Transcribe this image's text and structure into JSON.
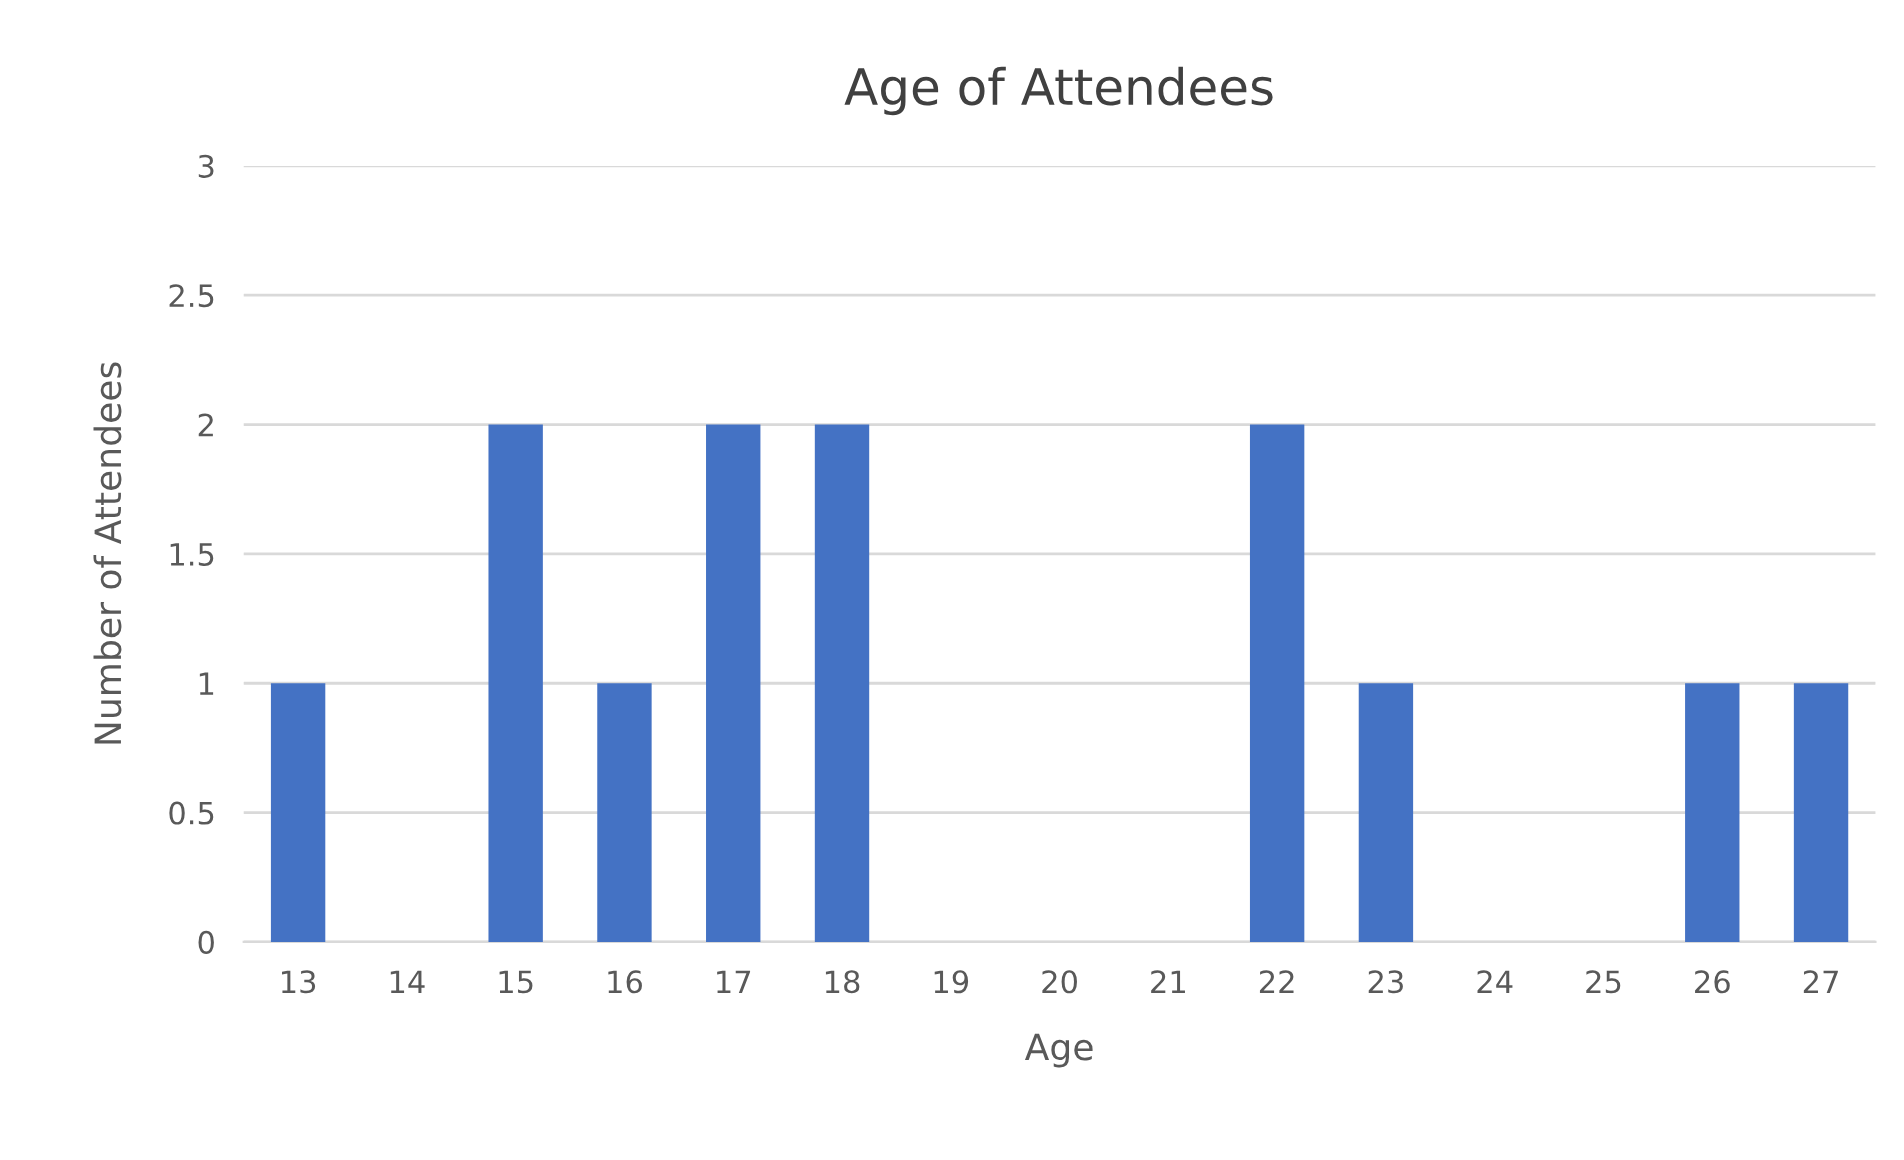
{
  "chart_data": {
    "type": "bar",
    "title": "Age of Attendees",
    "xlabel": "Age",
    "ylabel": "Number of Attendees",
    "categories": [
      "13",
      "14",
      "15",
      "16",
      "17",
      "18",
      "19",
      "20",
      "21",
      "22",
      "23",
      "24",
      "25",
      "26",
      "27"
    ],
    "values": [
      1,
      0,
      2,
      1,
      2,
      2,
      0,
      0,
      0,
      2,
      1,
      0,
      0,
      1,
      1
    ],
    "color": "#4472c4",
    "ylim": [
      0,
      3
    ],
    "yticks": [
      0,
      0.5,
      1,
      1.5,
      2,
      2.5,
      3
    ],
    "grid": "y",
    "legend": false
  }
}
